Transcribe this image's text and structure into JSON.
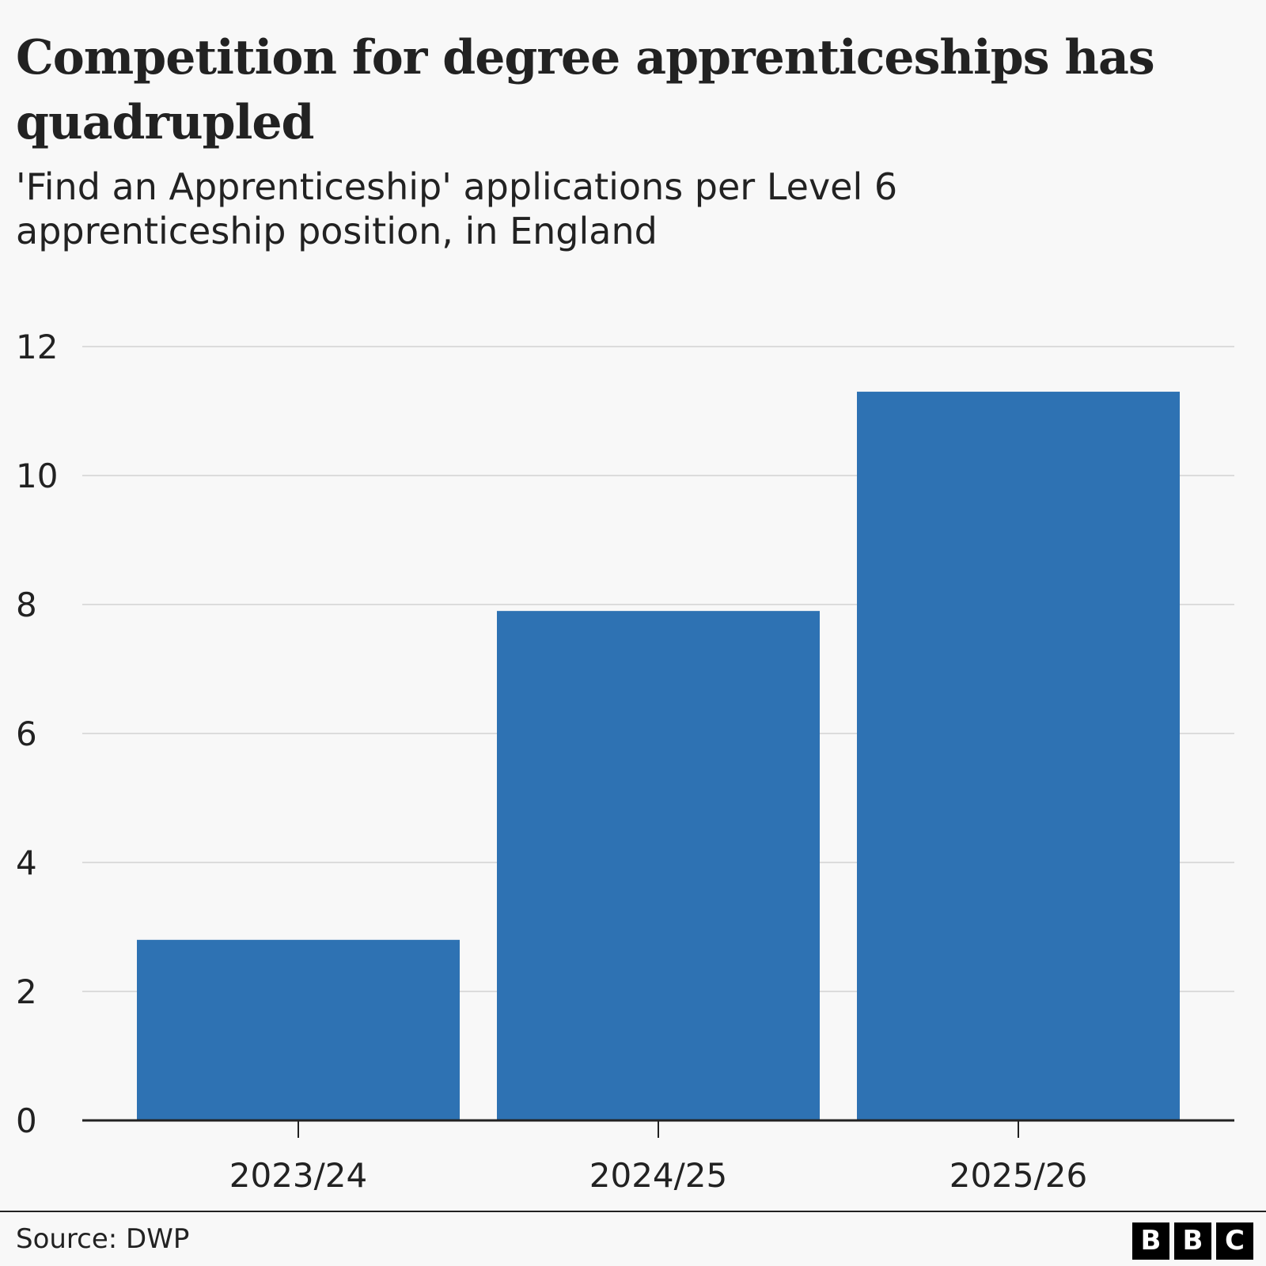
{
  "header": {
    "title": "Competition for degree apprenticeships has quadrupled",
    "subtitle": "'Find an Apprenticeship' applications per Level 6 apprenticeship position, in England"
  },
  "footer": {
    "source": "Source: DWP",
    "logo_letters": [
      "B",
      "B",
      "C"
    ]
  },
  "colors": {
    "bar": "#2e72b3",
    "gridline": "#dcdcdc",
    "axis": "#222222",
    "background": "#f8f8f8"
  },
  "chart_data": {
    "type": "bar",
    "title": "Competition for degree apprenticeships has quadrupled",
    "subtitle": "'Find an Apprenticeship' applications per Level 6 apprenticeship position, in England",
    "xlabel": "",
    "ylabel": "",
    "categories": [
      "2023/24",
      "2024/25",
      "2025/26"
    ],
    "values": [
      2.8,
      7.9,
      11.3
    ],
    "ylim": [
      0,
      12
    ],
    "yticks": [
      0,
      2,
      4,
      6,
      8,
      10,
      12
    ],
    "grid": true,
    "legend": "none"
  }
}
